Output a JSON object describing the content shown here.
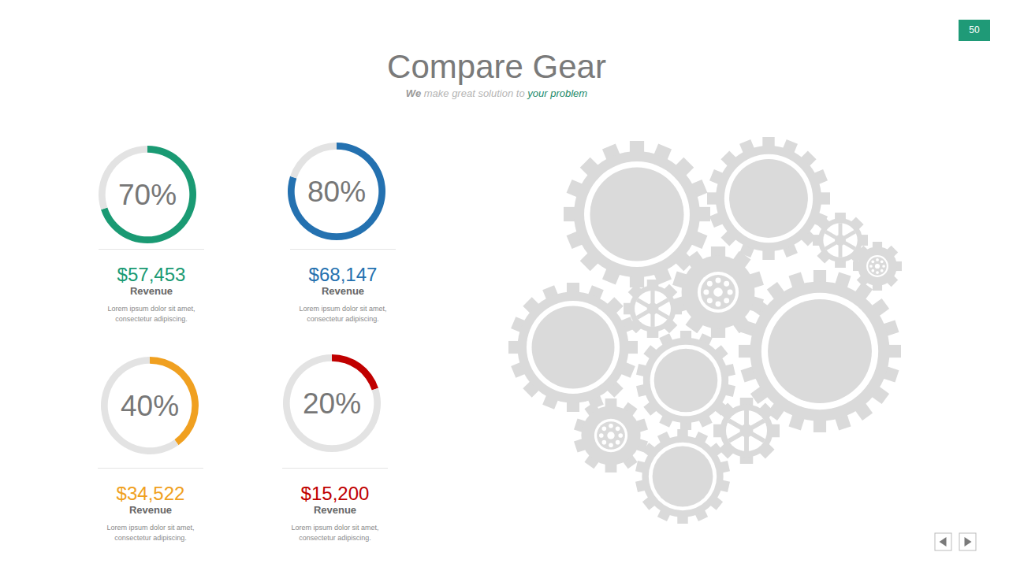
{
  "page_number": "50",
  "title": "Compare Gear",
  "subtitle": {
    "lead": "We",
    "middle": "make great solution to",
    "highlight": "your problem"
  },
  "chart_data": [
    {
      "type": "donut",
      "range": [
        0,
        100
      ],
      "values": [
        70
      ],
      "value_labels": [
        "70%"
      ],
      "color": "#1a9a73",
      "revenue": "$57,453",
      "caption": "Revenue",
      "description": [
        "Lorem ipsum dolor sit amet,",
        "consectetur adipiscing."
      ]
    },
    {
      "type": "donut",
      "range": [
        0,
        100
      ],
      "values": [
        80
      ],
      "value_labels": [
        "80%"
      ],
      "color": "#2471b0",
      "revenue": "$68,147",
      "caption": "Revenue",
      "description": [
        "Lorem ipsum dolor sit amet,",
        "consectetur adipiscing."
      ]
    },
    {
      "type": "donut",
      "range": [
        0,
        100
      ],
      "values": [
        40
      ],
      "value_labels": [
        "40%"
      ],
      "color": "#f0a020",
      "revenue": "$34,522",
      "caption": "Revenue",
      "description": [
        "Lorem ipsum dolor sit amet,",
        "consectetur adipiscing."
      ]
    },
    {
      "type": "donut",
      "range": [
        0,
        100
      ],
      "values": [
        20
      ],
      "value_labels": [
        "20%"
      ],
      "color": "#c00000",
      "revenue": "$15,200",
      "caption": "Revenue",
      "description": [
        "Lorem ipsum dolor sit amet,",
        "consectetur adipiscing."
      ]
    }
  ]
}
